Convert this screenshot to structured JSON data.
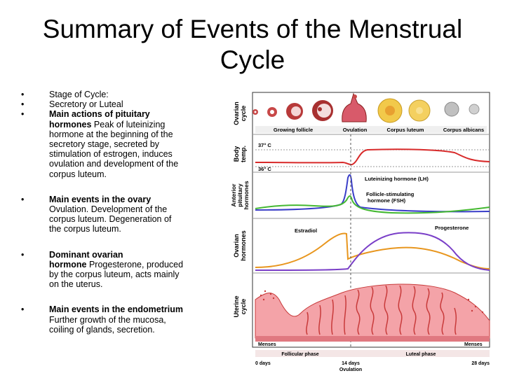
{
  "slide": {
    "title_line1": "Summary of Events of the Menstrual",
    "title_line2": "Cycle",
    "bullet_char": "•"
  },
  "bullets": {
    "stage_label": "Stage of Cycle:",
    "stage_value": "Secretory or Luteal",
    "pituitary_heading_1": "Main actions of pituitary",
    "pituitary_heading_2": "hormones",
    "pituitary_text": [
      " Peak of luteinizing",
      "hormone at the beginning of the",
      "secretory stage, secreted by",
      "stimulation of estrogen, induces",
      "ovulation and development of the",
      "corpus luteum."
    ],
    "ovary_heading": "Main events in the ovary",
    "ovary_text": [
      "Ovulation. Development of the",
      "corpus luteum. Degeneration of",
      "the corpus luteum."
    ],
    "dominant_heading_1": "Dominant ovarian",
    "dominant_heading_2": "hormone",
    "dominant_text": [
      " Progesterone, produced",
      "by the corpus luteum, acts mainly",
      "on the uterus."
    ],
    "endometrium_heading": "Main events in the endometrium",
    "endometrium_text": [
      "Further growth of the mucosa,",
      "coiling of glands, secretion."
    ]
  },
  "figure": {
    "row_labels": {
      "ovarian_cycle": [
        "Ovarian",
        "cycle"
      ],
      "body_temp": [
        "Body",
        "temp."
      ],
      "pituitary": [
        "Anterior",
        "pituitary",
        "hormones"
      ],
      "ovarian_hormones": [
        "Ovarian",
        "hormones"
      ],
      "uterine": [
        "Uterine",
        "cycle"
      ]
    },
    "ovary_labels": {
      "growing_follicle": "Growing follicle",
      "ovulation": "Ovulation",
      "corpus_luteum": "Corpus luteum",
      "corpus_albicans": "Corpus albicans"
    },
    "temp_high": "37° C",
    "temp_low": "36° C",
    "lh_label": "Luteinizing hormone (LH)",
    "fsh_label_1": "Follicle-stimulating",
    "fsh_label_2": "hormone (FSH)",
    "estradiol_label": "Estradiol",
    "progesterone_label": "Progesterone",
    "menses_left": "Menses",
    "menses_right": "Menses",
    "follicular_phase": "Follicular phase",
    "luteal_phase": "Luteal phase",
    "day_0": "0 days",
    "day_14": "14 days",
    "ovulation_axis": "Ovulation",
    "day_28": "28 days",
    "colors": {
      "lh": "#3a3ec8",
      "fsh": "#44b832",
      "estradiol": "#e8961e",
      "progesterone": "#7a3fc8",
      "temperature": "#d82a2a",
      "endometrium": "#f4a3a8",
      "gland": "#c83a3a"
    }
  }
}
